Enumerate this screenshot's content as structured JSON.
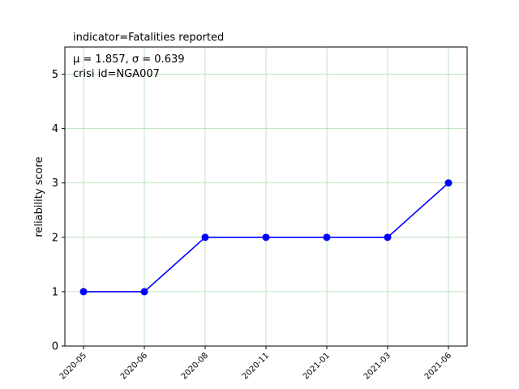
{
  "chart_data": {
    "type": "line",
    "title": "indicator=Fatalities reported",
    "xlabel": "",
    "ylabel": "reliability score",
    "categories": [
      "2020-05",
      "2020-06",
      "2020-08",
      "2020-11",
      "2021-01",
      "2021-03",
      "2021-06"
    ],
    "series": [
      {
        "values": [
          1,
          1,
          2,
          2,
          2,
          2,
          3
        ],
        "color": "#0000ff"
      }
    ],
    "ylim": [
      0,
      5.5
    ],
    "yticks": [
      0,
      1,
      2,
      3,
      4,
      5
    ],
    "grid": true,
    "grid_color": "#b3dcb3",
    "annotations": {
      "stats": "μ = 1.857,  σ = 0.639",
      "crisis": "crisi id=NGA007"
    }
  }
}
